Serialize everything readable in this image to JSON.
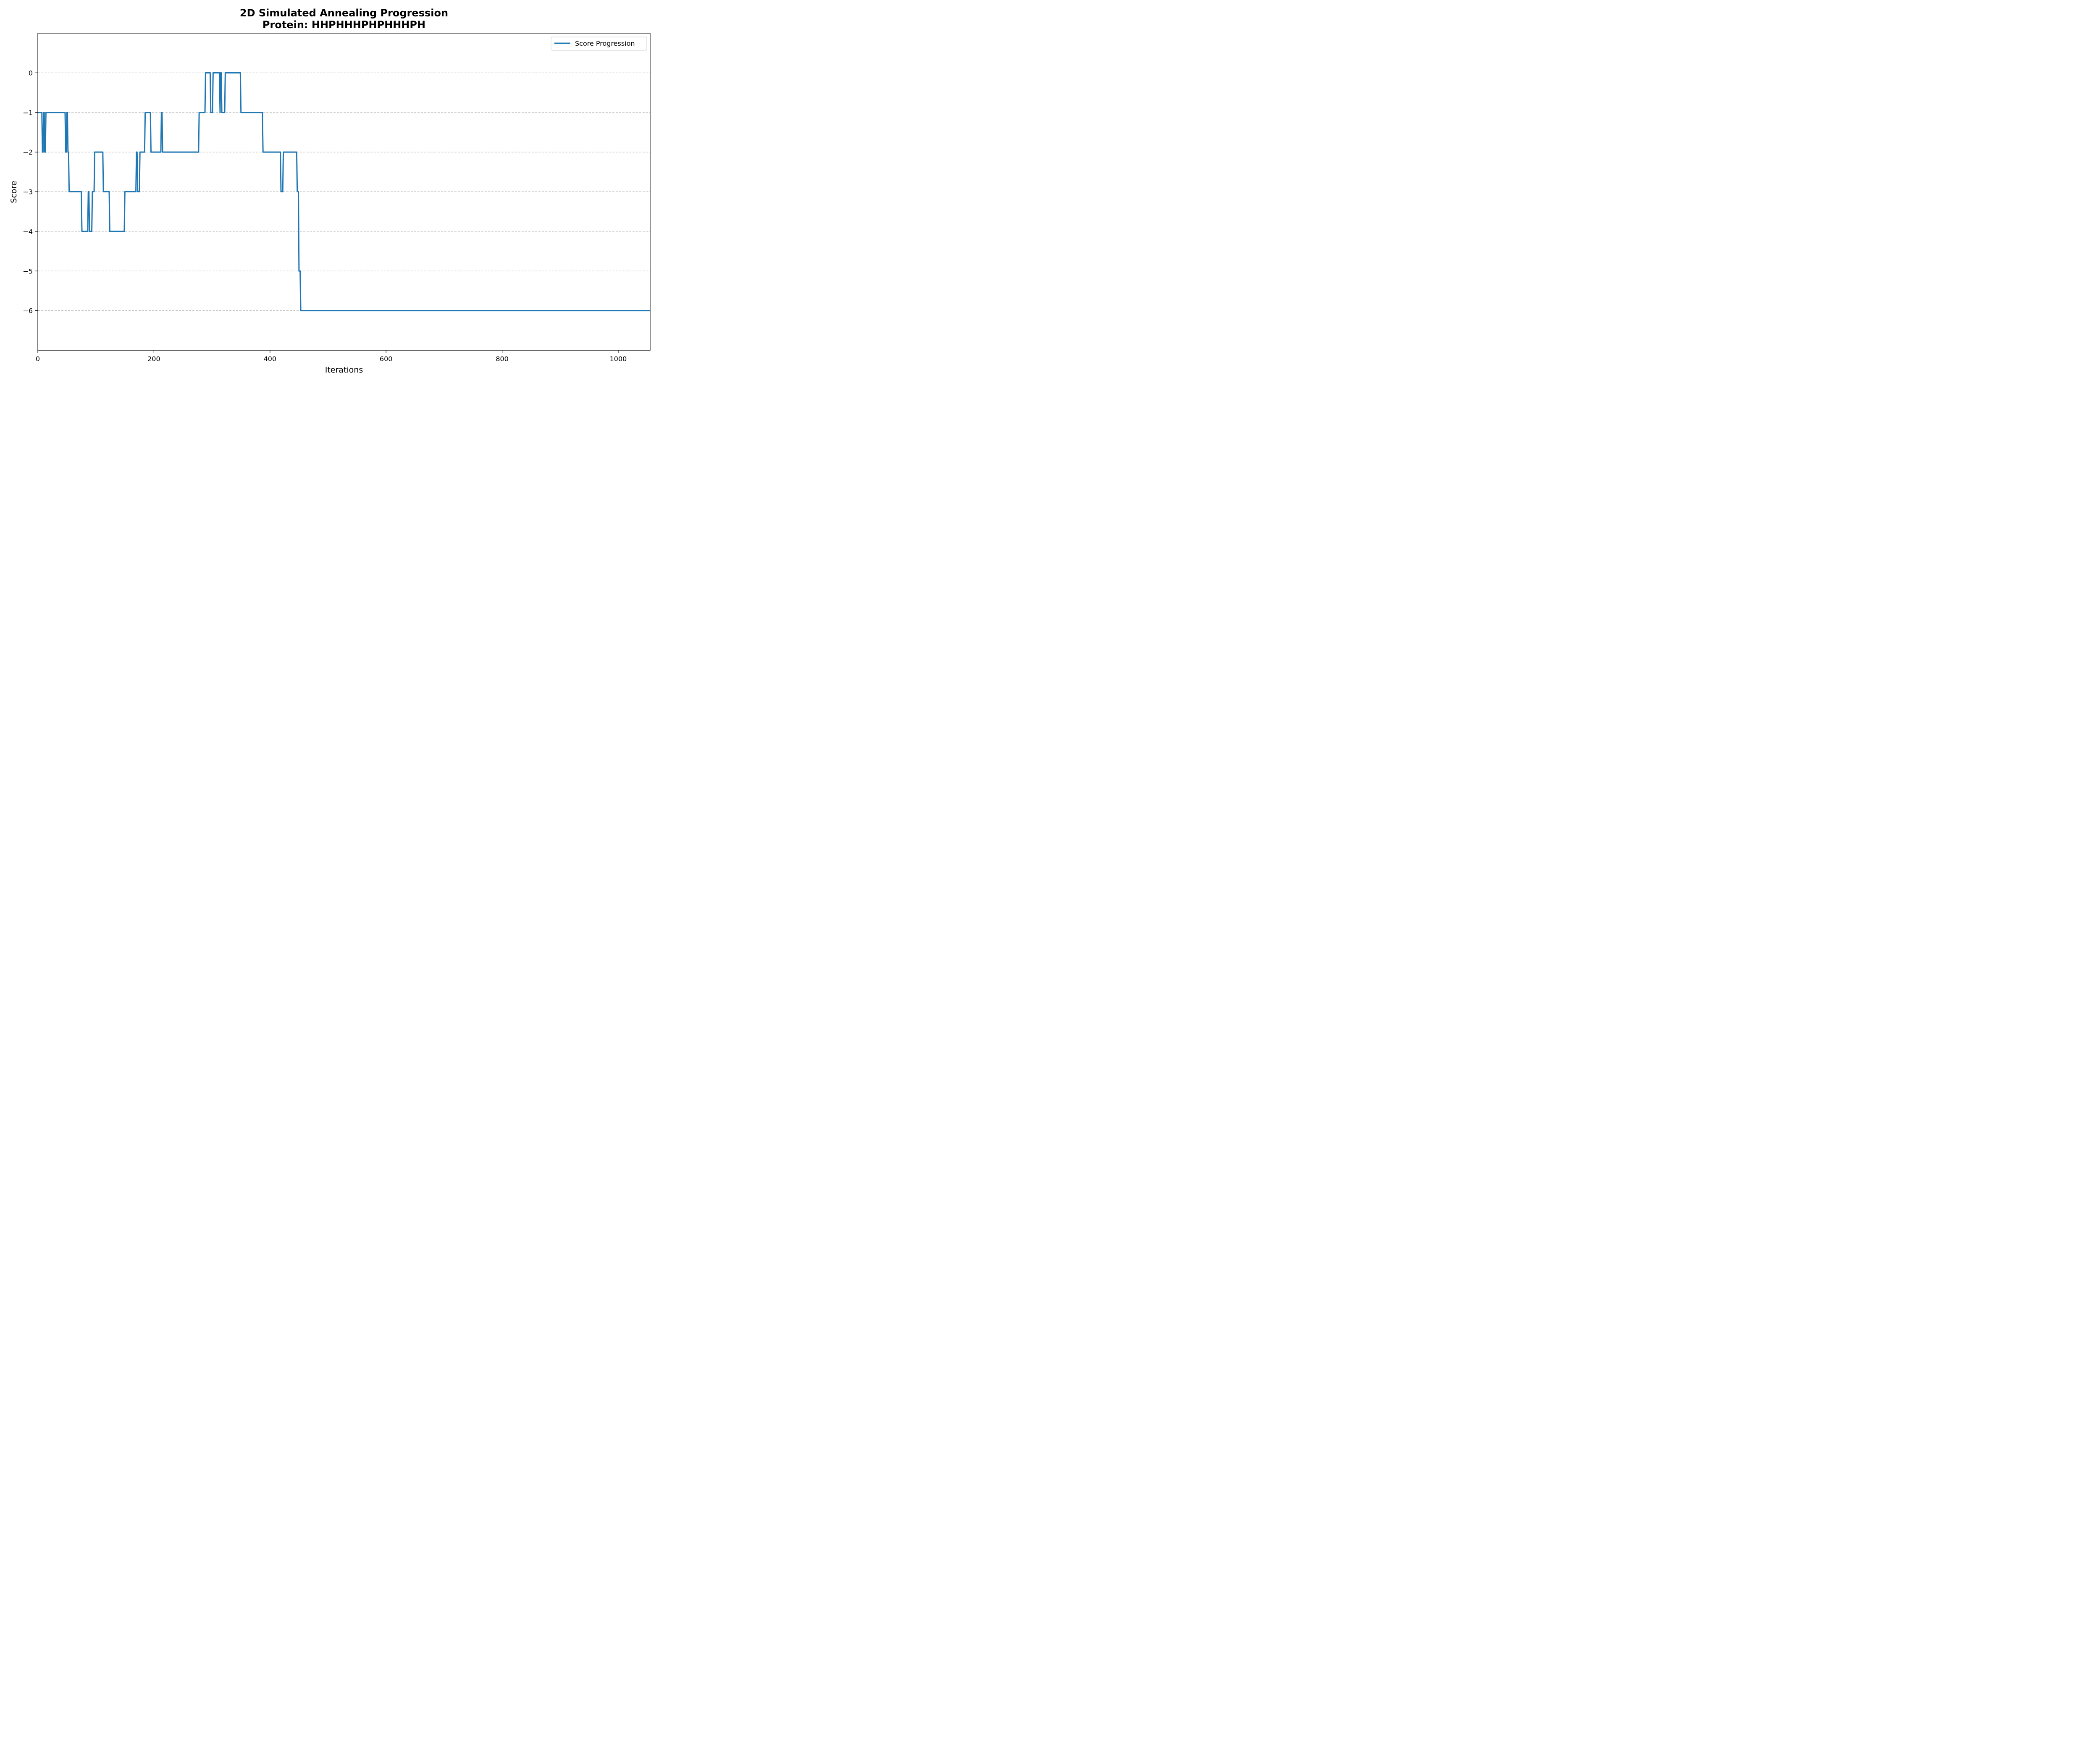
{
  "chart_data": {
    "type": "line",
    "title": "2D Simulated Annealing Progression",
    "subtitle": "Protein: HHPHHHPHPHHHPH",
    "xlabel": "Iterations",
    "ylabel": "Score",
    "xlim": [
      0,
      1055
    ],
    "ylim": [
      -7,
      1
    ],
    "xticks": [
      0,
      200,
      400,
      600,
      800,
      1000
    ],
    "xtick_labels": [
      "0",
      "200",
      "400",
      "600",
      "800",
      "1000"
    ],
    "yticks": [
      0,
      -1,
      -2,
      -3,
      -4,
      -5,
      -6
    ],
    "ytick_labels": [
      "0",
      "−1",
      "−2",
      "−3",
      "−4",
      "−5",
      "−6"
    ],
    "grid": "horizontal dashed",
    "legend_position": "upper right",
    "series": [
      {
        "name": "Score Progression",
        "color": "#1f77b4",
        "x": [
          0,
          7,
          8,
          9,
          10,
          11,
          12,
          13,
          14,
          15,
          47,
          48,
          49,
          50,
          51,
          52,
          53,
          54,
          55,
          56,
          75,
          76,
          86,
          87,
          88,
          89,
          93,
          94,
          97,
          98,
          112,
          113,
          123,
          124,
          149,
          150,
          169,
          170,
          171,
          172,
          175,
          176,
          184,
          185,
          194,
          195,
          212,
          213,
          214,
          215,
          216,
          277,
          278,
          288,
          289,
          297,
          298,
          301,
          302,
          313,
          314,
          315,
          316,
          317,
          318,
          322,
          323,
          349,
          350,
          387,
          388,
          418,
          419,
          422,
          423,
          446,
          447,
          449,
          450,
          452,
          453,
          455,
          456,
          1055
        ],
        "y": [
          -1,
          -1,
          -2,
          -2,
          -1,
          -1,
          -2,
          -2,
          -1,
          -1,
          -1,
          -2,
          -2,
          -1,
          -1,
          -2,
          -2,
          -3,
          -3,
          -3,
          -3,
          -4,
          -4,
          -3,
          -3,
          -4,
          -4,
          -3,
          -3,
          -2,
          -2,
          -3,
          -3,
          -4,
          -4,
          -3,
          -3,
          -2,
          -2,
          -3,
          -3,
          -2,
          -2,
          -1,
          -1,
          -2,
          -2,
          -1,
          -1,
          -2,
          -2,
          -2,
          -1,
          -1,
          0,
          0,
          -1,
          -1,
          0,
          0,
          -1,
          0,
          0,
          -1,
          -1,
          -1,
          0,
          0,
          -1,
          -1,
          -2,
          -2,
          -3,
          -3,
          -2,
          -2,
          -3,
          -3,
          -5,
          -5,
          -6,
          -6,
          -6,
          -6
        ]
      }
    ]
  }
}
